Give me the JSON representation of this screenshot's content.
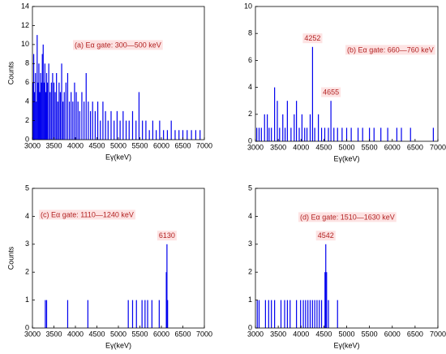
{
  "chart_data": [
    {
      "type": "bar",
      "label": "(a) Eα gate: 300—500 keV",
      "xlabel": "Eγ(keV)",
      "ylabel": "Counts",
      "xlim": [
        3000,
        7000
      ],
      "xticks": [
        3000,
        3500,
        4000,
        4500,
        5000,
        5500,
        6000,
        6500,
        7000
      ],
      "ylim": [
        0,
        14
      ],
      "yticks": [
        0,
        2,
        4,
        6,
        8,
        10,
        12,
        14
      ],
      "color": "#0000ee",
      "x": [
        3010,
        3030,
        3050,
        3070,
        3090,
        3110,
        3130,
        3150,
        3170,
        3190,
        3210,
        3230,
        3250,
        3270,
        3290,
        3310,
        3330,
        3350,
        3380,
        3410,
        3440,
        3470,
        3500,
        3530,
        3560,
        3590,
        3620,
        3650,
        3680,
        3710,
        3740,
        3780,
        3820,
        3860,
        3900,
        3940,
        3980,
        4020,
        4060,
        4100,
        4150,
        4200,
        4250,
        4300,
        4350,
        4400,
        4460,
        4520,
        4580,
        4640,
        4700,
        4760,
        4830,
        4900,
        4970,
        5040,
        5110,
        5180,
        5250,
        5330,
        5410,
        5480,
        5560,
        5640,
        5720,
        5800,
        5880,
        5960,
        6050,
        6140,
        6230,
        6320,
        6410,
        6500,
        6600,
        6700,
        6800,
        6900
      ],
      "values": [
        6,
        9,
        5,
        7,
        4,
        11,
        6,
        8,
        5,
        7,
        6,
        9,
        10,
        6,
        8,
        5,
        7,
        6,
        8,
        5,
        6,
        7,
        6,
        5,
        7,
        4,
        6,
        5,
        8,
        4,
        5,
        6,
        7,
        4,
        5,
        4,
        6,
        5,
        4,
        3,
        5,
        4,
        7,
        4,
        3,
        4,
        3,
        4,
        2,
        4,
        3,
        2,
        3,
        2,
        3,
        2,
        3,
        2,
        2,
        3,
        2,
        5,
        2,
        2,
        1,
        2,
        1,
        2,
        1,
        1,
        2,
        1,
        1,
        1,
        1,
        1,
        1,
        1
      ]
    },
    {
      "type": "bar",
      "label": "(b) Eα gate: 660—760 keV",
      "xlabel": "Eγ(keV)",
      "xlim": [
        3000,
        7000
      ],
      "xticks": [
        3000,
        3500,
        4000,
        4500,
        5000,
        5500,
        6000,
        6500,
        7000
      ],
      "ylim": [
        0,
        10
      ],
      "yticks": [
        0,
        2,
        4,
        6,
        8,
        10
      ],
      "color": "#0000ee",
      "annotations": [
        "4252",
        "4655"
      ],
      "x": [
        3030,
        3080,
        3130,
        3200,
        3260,
        3300,
        3350,
        3420,
        3480,
        3530,
        3600,
        3650,
        3700,
        3780,
        3850,
        3900,
        3960,
        4020,
        4080,
        4130,
        4200,
        4252,
        4300,
        4380,
        4450,
        4520,
        4600,
        4655,
        4720,
        4800,
        4900,
        5000,
        5100,
        5250,
        5350,
        5500,
        5600,
        5750,
        5900,
        6100,
        6200,
        6400,
        6900
      ],
      "values": [
        1,
        1,
        1,
        2,
        2,
        1,
        1,
        4,
        3,
        1,
        2,
        1,
        3,
        1,
        2,
        3,
        1,
        2,
        1,
        1,
        2,
        7,
        1,
        2,
        1,
        1,
        1,
        3,
        1,
        1,
        1,
        1,
        1,
        1,
        1,
        1,
        1,
        1,
        1,
        1,
        1,
        1,
        1
      ]
    },
    {
      "type": "bar",
      "label": "(c) Eα gate: 1110—1240 keV",
      "xlabel": "Eγ(keV)",
      "ylabel": "Counts",
      "xlim": [
        3000,
        7000
      ],
      "xticks": [
        3000,
        3500,
        4000,
        4500,
        5000,
        5500,
        6000,
        6500,
        7000
      ],
      "ylim": [
        0,
        5
      ],
      "yticks": [
        0,
        1,
        2,
        3,
        4,
        5
      ],
      "color": "#0000ee",
      "annotations": [
        "6130"
      ],
      "x": [
        3300,
        3330,
        3820,
        4290,
        5230,
        5330,
        5420,
        5550,
        5620,
        5680,
        5780,
        5950,
        6115,
        6130,
        6145
      ],
      "values": [
        1,
        1,
        1,
        1,
        1,
        1,
        1,
        1,
        1,
        1,
        1,
        1,
        2,
        3,
        1
      ]
    },
    {
      "type": "bar",
      "label": "(d) Eα gate: 1510—1630 keV",
      "xlabel": "Eγ(keV)",
      "xlim": [
        3000,
        7000
      ],
      "xticks": [
        3000,
        3500,
        4000,
        4500,
        5000,
        5500,
        6000,
        6500,
        7000
      ],
      "ylim": [
        0,
        5
      ],
      "yticks": [
        0,
        1,
        2,
        3,
        4,
        5
      ],
      "color": "#0000ee",
      "annotations": [
        "4542"
      ],
      "x": [
        3040,
        3080,
        3220,
        3290,
        3350,
        3420,
        3560,
        3640,
        3700,
        3760,
        3900,
        3990,
        4050,
        4100,
        4150,
        4200,
        4250,
        4300,
        4350,
        4400,
        4450,
        4525,
        4542,
        4560,
        4600,
        4800
      ],
      "values": [
        1,
        1,
        1,
        1,
        1,
        1,
        1,
        1,
        1,
        1,
        1,
        1,
        1,
        1,
        1,
        1,
        1,
        1,
        1,
        1,
        1,
        2,
        3,
        2,
        1,
        1
      ]
    }
  ]
}
